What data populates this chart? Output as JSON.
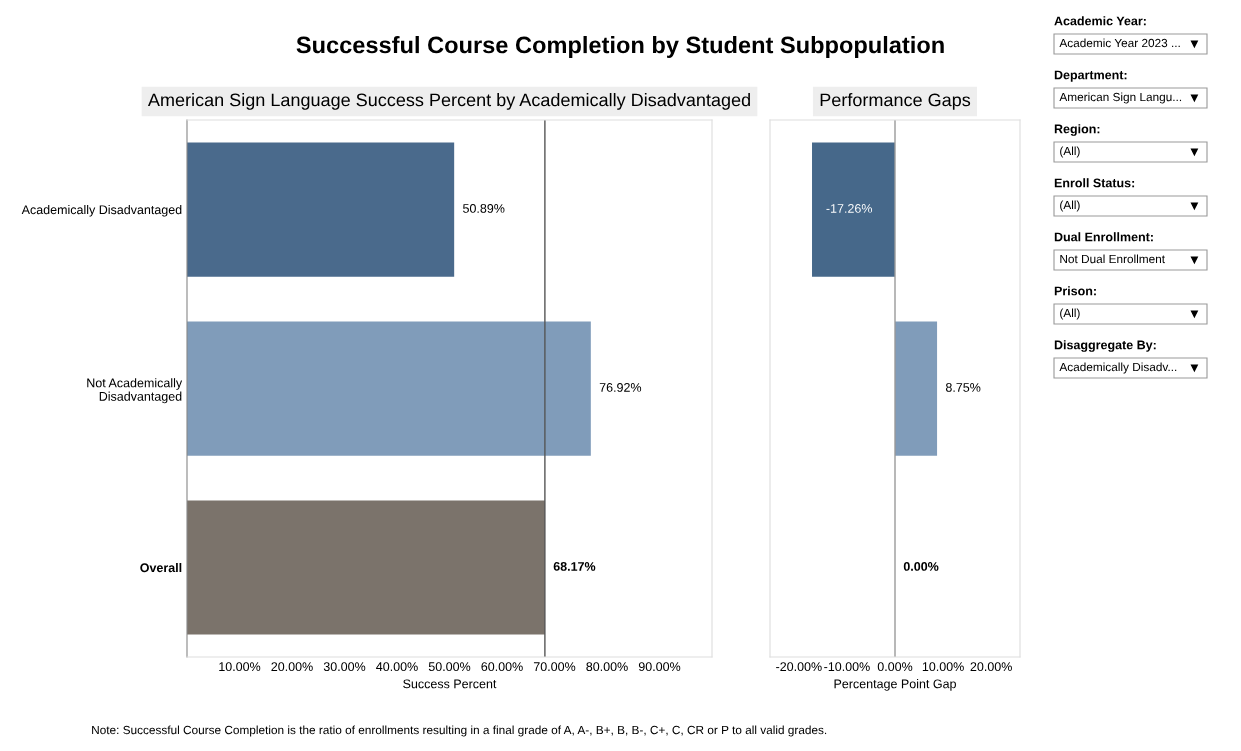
{
  "chart_data": [
    {
      "type": "bar",
      "orientation": "horizontal",
      "title": "Successful Course Completion by Student Subpopulation",
      "subtitle": "American Sign Language Success Percent by Academically Disadvantaged",
      "xlabel": "Success Percent",
      "categories": [
        "Academically Disadvantaged",
        "Not Academically\nDisadvantaged",
        "Overall"
      ],
      "values": [
        50.89,
        76.92,
        68.17
      ],
      "colors": [
        "#4a6a8c",
        "#809cba",
        "#7b736b"
      ],
      "value_labels": [
        "50.89%",
        "76.92%",
        "68.17%"
      ],
      "xlim": [
        0,
        100
      ],
      "xticks": [
        {
          "value": 10,
          "label": "10.00%"
        },
        {
          "value": 20,
          "label": "20.00%"
        },
        {
          "value": 30,
          "label": "30.00%"
        },
        {
          "value": 40,
          "label": "40.00%"
        },
        {
          "value": 50,
          "label": "50.00%"
        },
        {
          "value": 60,
          "label": "60.00%"
        },
        {
          "value": 70,
          "label": "70.00%"
        },
        {
          "value": 80,
          "label": "80.00%"
        },
        {
          "value": 90,
          "label": "90.00%"
        }
      ],
      "ref_lines": [
        {
          "axis": "x",
          "value": 68.17,
          "color": "#555555"
        }
      ],
      "annotations": [
        "Note: Successful Course Completion is the ratio of enrollments resulting in a final grade of A, A-, B+, B, B-, C+, C, CR or P to all valid grades."
      ],
      "grid": false,
      "legend": false
    },
    {
      "type": "bar",
      "orientation": "horizontal",
      "subtitle": "Performance Gaps",
      "xlabel": "Percentage Point Gap",
      "categories": [
        null,
        null,
        null
      ],
      "values": [
        -17.26,
        8.75,
        0.0
      ],
      "colors": [
        "#46688a",
        "#809cba",
        "#7b736b"
      ],
      "value_labels": [
        "-17.26%",
        "8.75%",
        "0.00%"
      ],
      "xlim": [
        -26,
        26
      ],
      "xticks": [
        {
          "value": -20,
          "label": "-20.00%"
        },
        {
          "value": -10,
          "label": "-10.00%"
        },
        {
          "value": 0,
          "label": "0.00%"
        },
        {
          "value": 10,
          "label": "10.00%"
        },
        {
          "value": 20,
          "label": "20.00%"
        }
      ],
      "ref_lines": [
        {
          "axis": "x",
          "value": 0,
          "color": "#999999"
        }
      ],
      "tick_labels": "x",
      "grid": false,
      "legend": false
    },
    {
      "type": "other",
      "annotations": [
        "Academic Year:",
        "Academic Year 2023 ...",
        "Department:",
        "American Sign Langu...",
        "Region:",
        "(All)",
        "Enroll Status:",
        "(All)",
        "Dual Enrollment:",
        "Not Dual Enrollment",
        "Prison:",
        "(All)",
        "Disaggregate By:",
        "Academically Disadv..."
      ]
    }
  ]
}
